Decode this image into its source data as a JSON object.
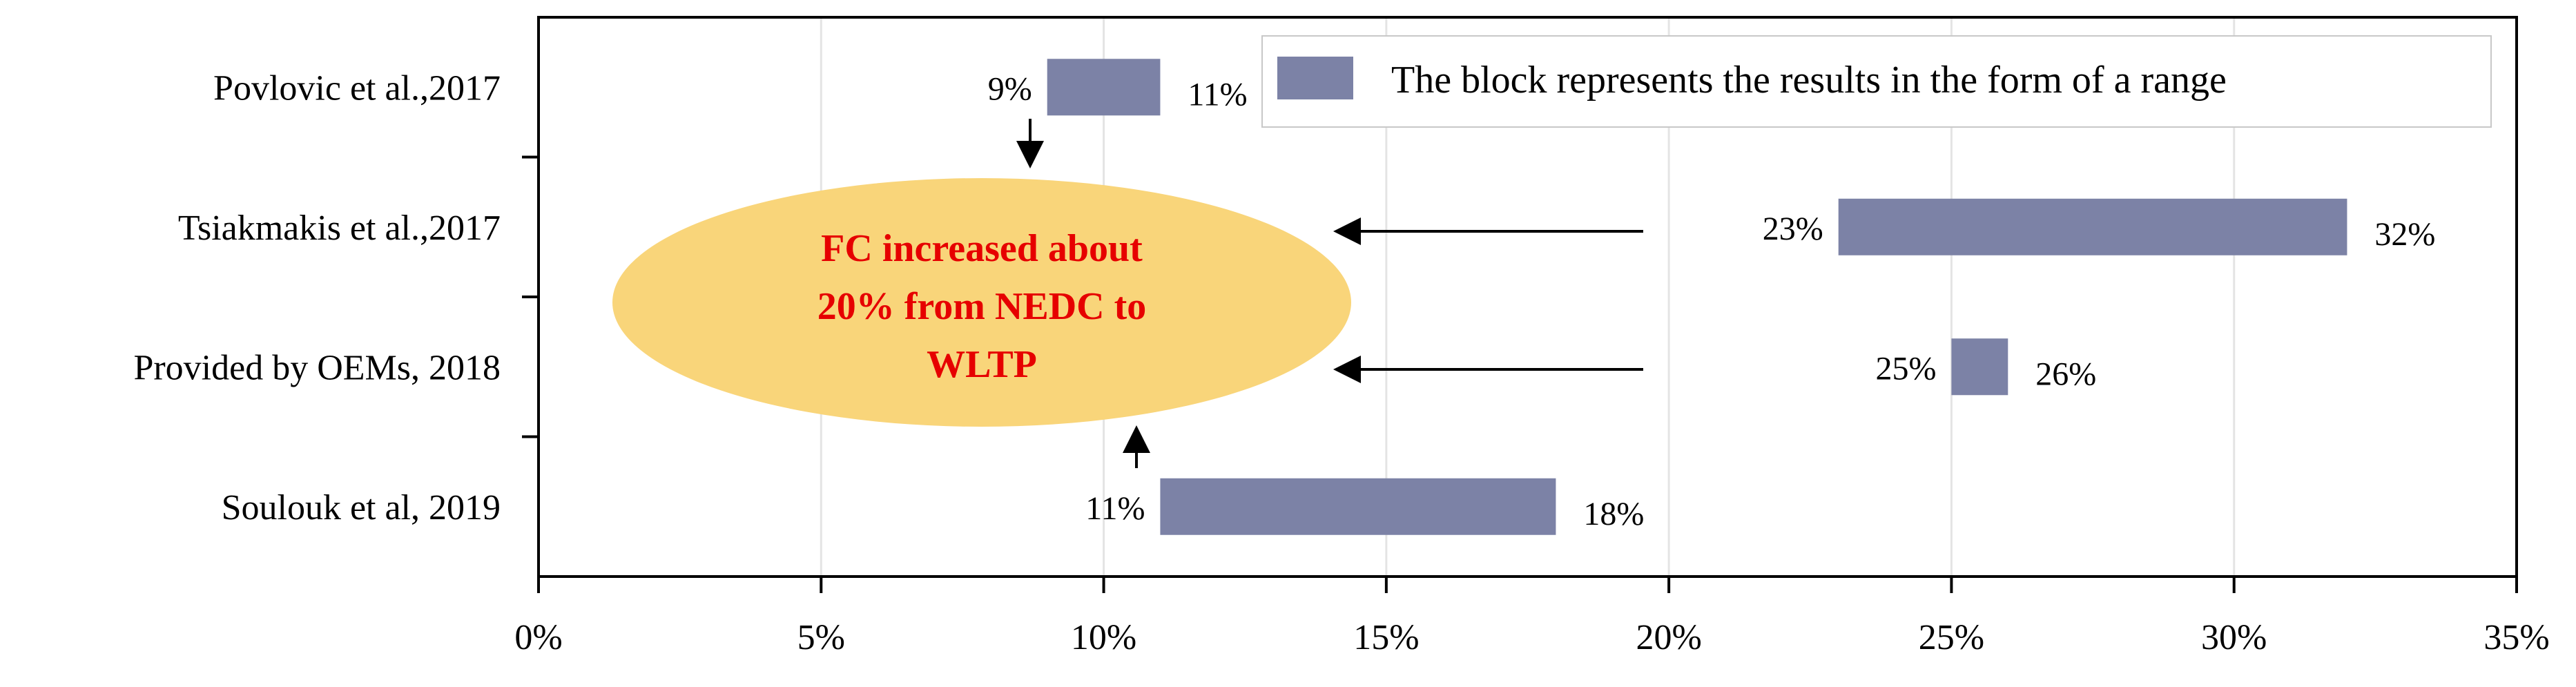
{
  "chart_data": {
    "type": "bar",
    "orientation": "horizontal",
    "range_bars": true,
    "categories": [
      "Povlovic et al.,2017",
      "Tsiakmakis et al.,2017",
      "Provided by OEMs, 2018",
      "Soulouk et al, 2019"
    ],
    "ranges": [
      {
        "low": 9,
        "high": 11,
        "low_label": "9%",
        "high_label": "11%"
      },
      {
        "low": 23,
        "high": 32,
        "low_label": "23%",
        "high_label": "32%"
      },
      {
        "low": 25,
        "high": 26,
        "low_label": "25%",
        "high_label": "26%"
      },
      {
        "low": 11,
        "high": 18,
        "low_label": "11%",
        "high_label": "18%"
      }
    ],
    "xlim": [
      0,
      35
    ],
    "xticks": [
      "0%",
      "5%",
      "10%",
      "15%",
      "20%",
      "25%",
      "30%",
      "35%"
    ],
    "grid": "vertical",
    "legend": {
      "label": "The block represents the results in the form of a range",
      "placement": "top-right"
    },
    "annotation": {
      "lines": [
        "FC increased about",
        "20% from NEDC to",
        "WLTP"
      ]
    },
    "colors": {
      "bar": "#7c82a6",
      "ellipse": "#f9d57a",
      "annotation_text": "#e60000"
    }
  }
}
